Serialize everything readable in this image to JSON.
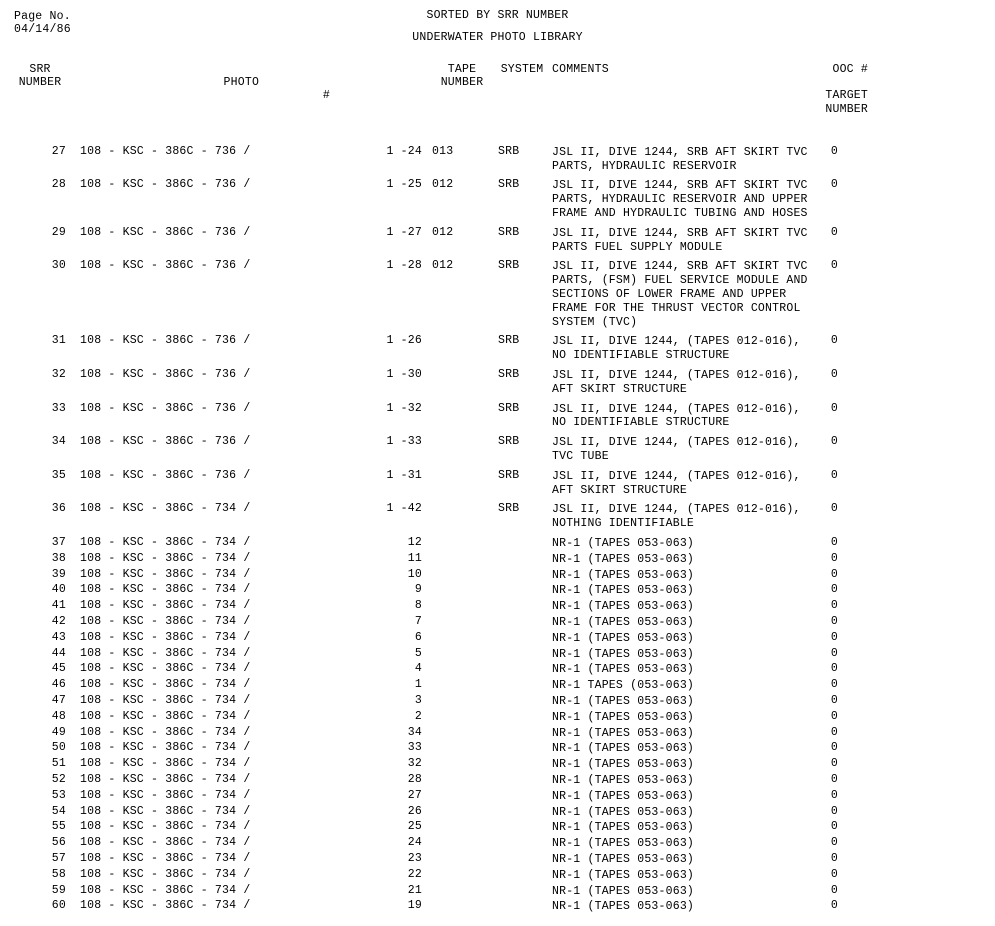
{
  "page_label": "Page No.",
  "date": "04/14/86",
  "title1": "SORTED BY SRR NUMBER",
  "title2": "UNDERWATER PHOTO LIBRARY",
  "columns": {
    "srr": "SRR\nNUMBER",
    "photo": "PHOTO",
    "hash": "#",
    "tape": "TAPE\nNUMBER",
    "system": "SYSTEM",
    "comments": "COMMENTS",
    "ooc": "OOC #\n\nTARGET\nNUMBER"
  },
  "rows": [
    {
      "srr": "27",
      "photo": "108 - KSC - 386C - 736 /",
      "seq": "1 -24",
      "tape": "013",
      "system": "SRB",
      "comments": "JSL II, DIVE 1244, SRB AFT SKIRT TVC PARTS, HYDRAULIC RESERVOIR",
      "ooc": "0",
      "spaced": true
    },
    {
      "srr": "28",
      "photo": "108 - KSC - 386C - 736 /",
      "seq": "1 -25",
      "tape": "012",
      "system": "SRB",
      "comments": "JSL II, DIVE 1244, SRB AFT SKIRT TVC PARTS, HYDRAULIC RESERVOIR AND UPPER FRAME AND HYDRAULIC TUBING AND HOSES",
      "ooc": "0",
      "spaced": true
    },
    {
      "srr": "29",
      "photo": "108 - KSC - 386C - 736 /",
      "seq": "1 -27",
      "tape": "012",
      "system": "SRB",
      "comments": "JSL II, DIVE 1244, SRB AFT SKIRT TVC PARTS FUEL SUPPLY MODULE",
      "ooc": "0",
      "spaced": true
    },
    {
      "srr": "30",
      "photo": "108 - KSC - 386C - 736 /",
      "seq": "1 -28",
      "tape": "012",
      "system": "SRB",
      "comments": "JSL II, DIVE 1244, SRB AFT SKIRT TVC PARTS, (FSM) FUEL SERVICE MODULE AND SECTIONS OF LOWER FRAME AND UPPER FRAME FOR THE THRUST VECTOR CONTROL SYSTEM (TVC)",
      "ooc": "0",
      "spaced": true
    },
    {
      "srr": "31",
      "photo": "108 - KSC - 386C - 736 /",
      "seq": "1 -26",
      "tape": "",
      "system": "SRB",
      "comments": "JSL II, DIVE 1244, (TAPES 012-016), NO IDENTIFIABLE STRUCTURE",
      "ooc": "0",
      "spaced": true
    },
    {
      "srr": "32",
      "photo": "108 - KSC - 386C - 736 /",
      "seq": "1 -30",
      "tape": "",
      "system": "SRB",
      "comments": "JSL II, DIVE 1244, (TAPES 012-016), AFT SKIRT STRUCTURE",
      "ooc": "0",
      "spaced": true
    },
    {
      "srr": "33",
      "photo": "108 - KSC - 386C - 736 /",
      "seq": "1 -32",
      "tape": "",
      "system": "SRB",
      "comments": "JSL II, DIVE 1244, (TAPES 012-016), NO IDENTIFIABLE STRUCTURE",
      "ooc": "0",
      "spaced": true
    },
    {
      "srr": "34",
      "photo": "108 - KSC - 386C - 736 /",
      "seq": "1 -33",
      "tape": "",
      "system": "SRB",
      "comments": "JSL II, DIVE 1244, (TAPES 012-016), TVC TUBE",
      "ooc": "0",
      "spaced": true
    },
    {
      "srr": "35",
      "photo": "108 - KSC - 386C - 736 /",
      "seq": "1 -31",
      "tape": "",
      "system": "SRB",
      "comments": "JSL II, DIVE 1244, (TAPES 012-016), AFT SKIRT STRUCTURE",
      "ooc": "0",
      "spaced": true
    },
    {
      "srr": "36",
      "photo": "108 - KSC - 386C - 734 /",
      "seq": "1 -42",
      "tape": "",
      "system": "SRB",
      "comments": "JSL II, DIVE 1244, (TAPES 012-016), NOTHING IDENTIFIABLE",
      "ooc": "0",
      "spaced": true
    },
    {
      "srr": "37",
      "photo": "108 - KSC - 386C - 734 /",
      "seq": "12",
      "tape": "",
      "system": "",
      "comments": "NR-1 (TAPES 053-063)",
      "ooc": "0"
    },
    {
      "srr": "38",
      "photo": "108 - KSC - 386C - 734 /",
      "seq": "11",
      "tape": "",
      "system": "",
      "comments": "NR-1 (TAPES 053-063)",
      "ooc": "0"
    },
    {
      "srr": "39",
      "photo": "108 - KSC - 386C - 734 /",
      "seq": "10",
      "tape": "",
      "system": "",
      "comments": "NR-1 (TAPES 053-063)",
      "ooc": "0"
    },
    {
      "srr": "40",
      "photo": "108 - KSC - 386C - 734 /",
      "seq": "9",
      "tape": "",
      "system": "",
      "comments": "NR-1 (TAPES 053-063)",
      "ooc": "0"
    },
    {
      "srr": "41",
      "photo": "108 - KSC - 386C - 734 /",
      "seq": "8",
      "tape": "",
      "system": "",
      "comments": "NR-1 (TAPES 053-063)",
      "ooc": "0"
    },
    {
      "srr": "42",
      "photo": "108 - KSC - 386C - 734 /",
      "seq": "7",
      "tape": "",
      "system": "",
      "comments": "NR-1 (TAPES 053-063)",
      "ooc": "0"
    },
    {
      "srr": "43",
      "photo": "108 - KSC - 386C - 734 /",
      "seq": "6",
      "tape": "",
      "system": "",
      "comments": "NR-1 (TAPES 053-063)",
      "ooc": "0"
    },
    {
      "srr": "44",
      "photo": "108 - KSC - 386C - 734 /",
      "seq": "5",
      "tape": "",
      "system": "",
      "comments": "NR-1 (TAPES 053-063)",
      "ooc": "0"
    },
    {
      "srr": "45",
      "photo": "108 - KSC - 386C - 734 /",
      "seq": "4",
      "tape": "",
      "system": "",
      "comments": "NR-1 (TAPES 053-063)",
      "ooc": "0"
    },
    {
      "srr": "46",
      "photo": "108 - KSC - 386C - 734 /",
      "seq": "1",
      "tape": "",
      "system": "",
      "comments": "NR-1 TAPES (053-063)",
      "ooc": "0"
    },
    {
      "srr": "47",
      "photo": "108 - KSC - 386C - 734 /",
      "seq": "3",
      "tape": "",
      "system": "",
      "comments": "NR-1 (TAPES 053-063)",
      "ooc": "0"
    },
    {
      "srr": "48",
      "photo": "108 - KSC - 386C - 734 /",
      "seq": "2",
      "tape": "",
      "system": "",
      "comments": "NR-1 (TAPES 053-063)",
      "ooc": "0"
    },
    {
      "srr": "49",
      "photo": "108 - KSC - 386C - 734 /",
      "seq": "34",
      "tape": "",
      "system": "",
      "comments": "NR-1 (TAPES 053-063)",
      "ooc": "0"
    },
    {
      "srr": "50",
      "photo": "108 - KSC - 386C - 734 /",
      "seq": "33",
      "tape": "",
      "system": "",
      "comments": "NR-1 (TAPES 053-063)",
      "ooc": "0"
    },
    {
      "srr": "51",
      "photo": "108 - KSC - 386C - 734 /",
      "seq": "32",
      "tape": "",
      "system": "",
      "comments": "NR-1 (TAPES 053-063)",
      "ooc": "0"
    },
    {
      "srr": "52",
      "photo": "108 - KSC - 386C - 734 /",
      "seq": "28",
      "tape": "",
      "system": "",
      "comments": "NR-1 (TAPES 053-063)",
      "ooc": "0"
    },
    {
      "srr": "53",
      "photo": "108 - KSC - 386C - 734 /",
      "seq": "27",
      "tape": "",
      "system": "",
      "comments": "NR-1 (TAPES 053-063)",
      "ooc": "0"
    },
    {
      "srr": "54",
      "photo": "108 - KSC - 386C - 734 /",
      "seq": "26",
      "tape": "",
      "system": "",
      "comments": "NR-1 (TAPES 053-063)",
      "ooc": "0"
    },
    {
      "srr": "55",
      "photo": "108 - KSC - 386C - 734 /",
      "seq": "25",
      "tape": "",
      "system": "",
      "comments": "NR-1 (TAPES 053-063)",
      "ooc": "0"
    },
    {
      "srr": "56",
      "photo": "108 - KSC - 386C - 734 /",
      "seq": "24",
      "tape": "",
      "system": "",
      "comments": "NR-1 (TAPES 053-063)",
      "ooc": "0"
    },
    {
      "srr": "57",
      "photo": "108 - KSC - 386C - 734 /",
      "seq": "23",
      "tape": "",
      "system": "",
      "comments": "NR-1 (TAPES 053-063)",
      "ooc": "0"
    },
    {
      "srr": "58",
      "photo": "108 - KSC - 386C - 734 /",
      "seq": "22",
      "tape": "",
      "system": "",
      "comments": "NR-1 (TAPES 053-063)",
      "ooc": "0"
    },
    {
      "srr": "59",
      "photo": "108 - KSC - 386C - 734 /",
      "seq": "21",
      "tape": "",
      "system": "",
      "comments": "NR-1 (TAPES 053-063)",
      "ooc": "0"
    },
    {
      "srr": "60",
      "photo": "108 - KSC - 386C - 734 /",
      "seq": "19",
      "tape": "",
      "system": "",
      "comments": "NR-1 (TAPES 053-063)",
      "ooc": "0"
    }
  ]
}
